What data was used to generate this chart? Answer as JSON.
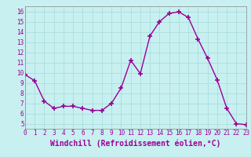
{
  "x": [
    0,
    1,
    2,
    3,
    4,
    5,
    6,
    7,
    8,
    9,
    10,
    11,
    12,
    13,
    14,
    15,
    16,
    17,
    18,
    19,
    20,
    21,
    22,
    23
  ],
  "y": [
    9.8,
    9.2,
    7.2,
    6.5,
    6.7,
    6.7,
    6.5,
    6.3,
    6.3,
    7.0,
    8.5,
    11.2,
    9.9,
    13.6,
    15.0,
    15.8,
    15.95,
    15.4,
    13.3,
    11.4,
    9.3,
    6.5,
    5.0,
    4.9
  ],
  "xlim": [
    0,
    23
  ],
  "ylim": [
    4.5,
    16.5
  ],
  "yticks": [
    5,
    6,
    7,
    8,
    9,
    10,
    11,
    12,
    13,
    14,
    15,
    16
  ],
  "xtick_labels": [
    "0",
    "1",
    "2",
    "3",
    "4",
    "5",
    "6",
    "7",
    "8",
    "9",
    "10",
    "11",
    "12",
    "13",
    "14",
    "15",
    "16",
    "17",
    "18",
    "19",
    "20",
    "21",
    "22",
    "23"
  ],
  "xlabel": "Windchill (Refroidissement éolien,°C)",
  "line_color": "#990099",
  "marker": "+",
  "marker_size": 4,
  "line_width": 1.0,
  "bg_color": "#c8f0f0",
  "grid_color": "#aadddd",
  "tick_color": "#990099",
  "label_color": "#990099",
  "tick_fontsize": 5.5,
  "xlabel_fontsize": 7.0
}
